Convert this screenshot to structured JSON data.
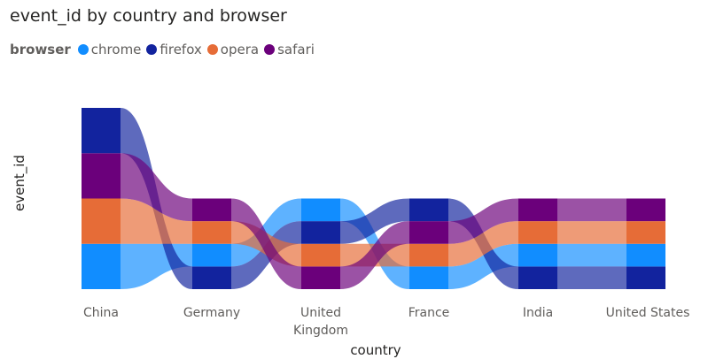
{
  "title": "event_id by country and browser",
  "legend": {
    "title": "browser",
    "items": [
      {
        "label": "chrome",
        "color": "#118DFF"
      },
      {
        "label": "firefox",
        "color": "#12239E"
      },
      {
        "label": "opera",
        "color": "#E66C37"
      },
      {
        "label": "safari",
        "color": "#6B007B"
      }
    ]
  },
  "chart_data": {
    "type": "ribbon",
    "title": "event_id by country and browser",
    "xlabel": "country",
    "ylabel": "event_id",
    "categories": [
      "China",
      "Germany",
      "United Kingdom",
      "France",
      "India",
      "United States"
    ],
    "category_label_lines": [
      [
        "China"
      ],
      [
        "Germany"
      ],
      [
        "United",
        "Kingdom"
      ],
      [
        "France"
      ],
      [
        "India"
      ],
      [
        "United States"
      ]
    ],
    "series": [
      {
        "name": "chrome",
        "color": "#118DFF",
        "values": [
          10,
          5,
          5,
          5,
          5,
          5
        ]
      },
      {
        "name": "firefox",
        "color": "#12239E",
        "values": [
          10,
          5,
          5,
          5,
          5,
          5
        ]
      },
      {
        "name": "opera",
        "color": "#E66C37",
        "values": [
          10,
          5,
          5,
          5,
          5,
          5
        ]
      },
      {
        "name": "safari",
        "color": "#6B007B",
        "values": [
          10,
          5,
          5,
          5,
          5,
          5
        ]
      }
    ],
    "stack_order_bottom_to_top": [
      [
        "chrome",
        "opera",
        "safari",
        "firefox"
      ],
      [
        "firefox",
        "chrome",
        "opera",
        "safari"
      ],
      [
        "safari",
        "opera",
        "firefox",
        "chrome"
      ],
      [
        "chrome",
        "opera",
        "safari",
        "firefox"
      ],
      [
        "firefox",
        "chrome",
        "opera",
        "safari"
      ],
      [
        "firefox",
        "chrome",
        "opera",
        "safari"
      ]
    ],
    "ylim": [
      0,
      40
    ],
    "grid": false,
    "legend_position": "top-left"
  }
}
